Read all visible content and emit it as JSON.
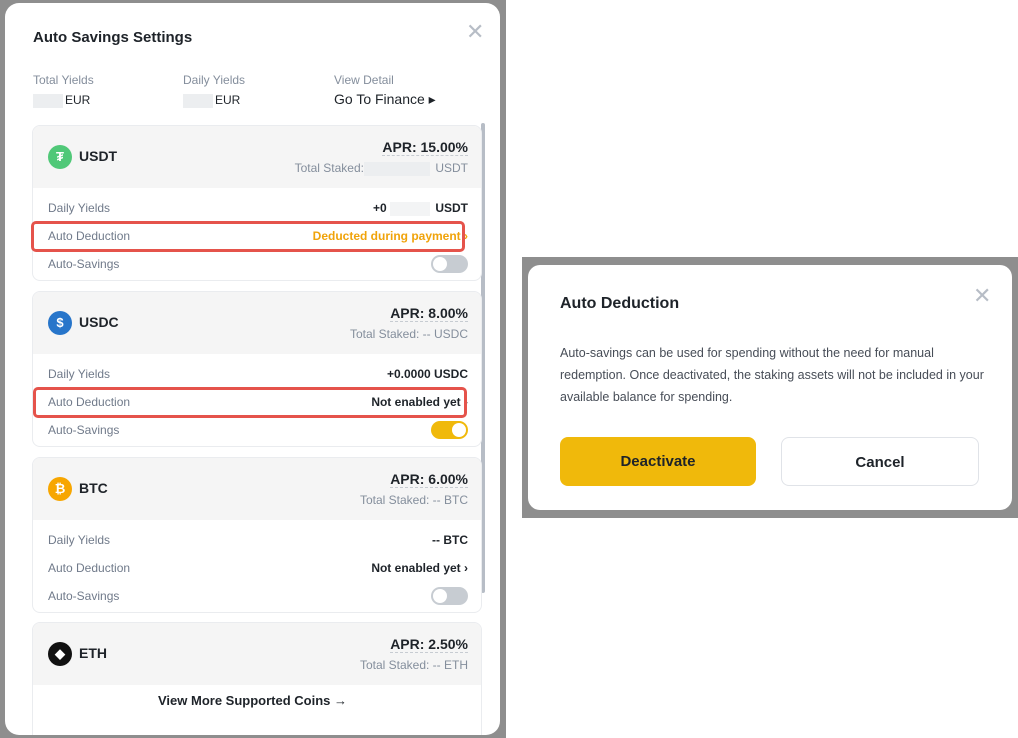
{
  "settings": {
    "title": "Auto Savings Settings",
    "summary": {
      "total_label": "Total Yields",
      "total_unit": "EUR",
      "daily_label": "Daily Yields",
      "daily_unit": "EUR",
      "detail_label": "View Detail",
      "detail_link": "Go To Finance ▸"
    },
    "coins": [
      {
        "name": "USDT",
        "symbol": "₮",
        "color": "#50c878",
        "apr": "APR: 15.00%",
        "staked": "Total Staked:",
        "staked_unit": "USDT",
        "daily_label": "Daily Yields",
        "daily_value": "+0",
        "daily_unit": "USDT",
        "deduction_label": "Auto Deduction",
        "deduction_value": "Deducted during payment ›",
        "savings_label": "Auto-Savings",
        "savings_on": false
      },
      {
        "name": "USDC",
        "symbol": "$",
        "color": "#2775ca",
        "apr": "APR: 8.00%",
        "staked": "Total Staked: -- USDC",
        "daily_label": "Daily Yields",
        "daily_value": "+0.0000 USDC",
        "deduction_label": "Auto Deduction",
        "deduction_value": "Not enabled yet ›",
        "savings_label": "Auto-Savings",
        "savings_on": true
      },
      {
        "name": "BTC",
        "symbol": "₿",
        "color": "#f7a600",
        "apr": "APR: 6.00%",
        "staked": "Total Staked: -- BTC",
        "daily_label": "Daily Yields",
        "daily_value": "-- BTC",
        "deduction_label": "Auto Deduction",
        "deduction_value": "Not enabled yet ›",
        "savings_label": "Auto-Savings",
        "savings_on": false
      },
      {
        "name": "ETH",
        "symbol": "◆",
        "color": "#111111",
        "apr": "APR: 2.50%",
        "staked": "Total Staked: -- ETH"
      }
    ],
    "more": "View More Supported Coins →"
  },
  "dialog": {
    "title": "Auto Deduction",
    "text": "Auto-savings can be used for spending without the need for manual redemption. Once deactivated, the staking assets will not be included in your available balance for spending.",
    "deactivate": "Deactivate",
    "cancel": "Cancel"
  }
}
